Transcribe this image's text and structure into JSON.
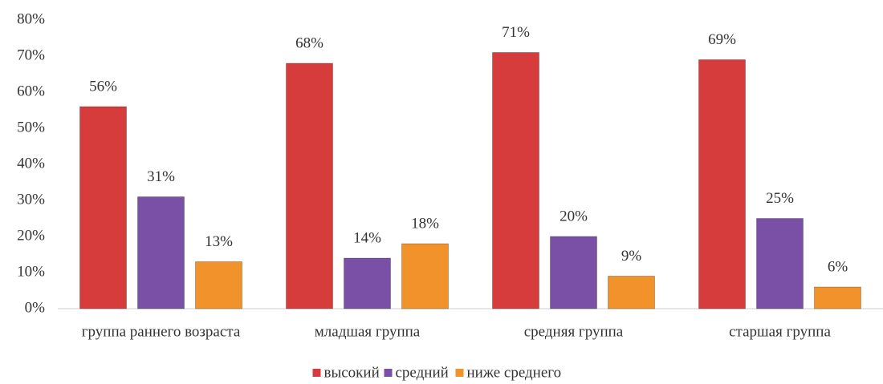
{
  "chart_data": {
    "type": "bar",
    "categories": [
      "группа раннего возраста",
      "младшая группа",
      "средняя группа",
      "старшая группа"
    ],
    "series": [
      {
        "name": "высокий",
        "color": "#d63c3c",
        "values": [
          56,
          68,
          71,
          69
        ],
        "value_labels": [
          "56%",
          "68%",
          "71%",
          "69%"
        ]
      },
      {
        "name": "средний",
        "color": "#7a4fa6",
        "values": [
          31,
          14,
          20,
          25
        ],
        "value_labels": [
          "31%",
          "14%",
          "20%",
          "25%"
        ]
      },
      {
        "name": "ниже среднего",
        "color": "#f2922a",
        "values": [
          13,
          18,
          9,
          6
        ],
        "value_labels": [
          "13%",
          "18%",
          "9%",
          "6%"
        ]
      }
    ],
    "ylim": [
      0,
      80
    ],
    "yticks": [
      {
        "value": 0,
        "label": "0%"
      },
      {
        "value": 10,
        "label": "10%"
      },
      {
        "value": 20,
        "label": "20%"
      },
      {
        "value": 30,
        "label": "30%"
      },
      {
        "value": 40,
        "label": "40%"
      },
      {
        "value": 50,
        "label": "50%"
      },
      {
        "value": 60,
        "label": "60%"
      },
      {
        "value": 70,
        "label": "70%"
      },
      {
        "value": 80,
        "label": "80%"
      }
    ],
    "grid": false,
    "legend": "bottom"
  }
}
